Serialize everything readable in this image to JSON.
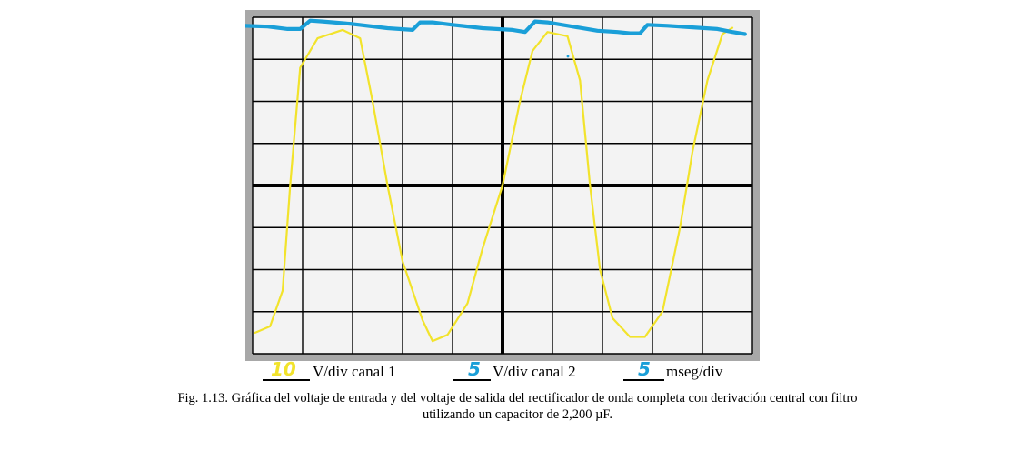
{
  "chart_data": {
    "type": "line",
    "title": "",
    "grid": true,
    "grid_divisions": {
      "x": 10,
      "y": 8
    },
    "xlim_div": [
      0,
      10
    ],
    "ylim_div": [
      -4,
      4
    ],
    "colors": {
      "frame": "#a8a8a8",
      "screen": "#f3f3f3",
      "grid": "#000000",
      "channel1": "#f2e32b",
      "channel2": "#1a9fd8",
      "handwriting": "#1a9fd8",
      "handwriting_ch1": "#f2e32b"
    },
    "series": [
      {
        "name": "",
        "description_channel": "input (canal 1)",
        "color": "#f2e32b",
        "points_div": [
          [
            0.05,
            -3.5
          ],
          [
            0.35,
            -3.35
          ],
          [
            0.6,
            -2.5
          ],
          [
            0.75,
            0
          ],
          [
            0.95,
            2.8
          ],
          [
            1.3,
            3.5
          ],
          [
            1.8,
            3.7
          ],
          [
            2.15,
            3.5
          ],
          [
            2.4,
            2.0
          ],
          [
            2.7,
            0
          ],
          [
            3.0,
            -1.8
          ],
          [
            3.4,
            -3.2
          ],
          [
            3.6,
            -3.7
          ],
          [
            3.9,
            -3.55
          ],
          [
            4.3,
            -2.8
          ],
          [
            4.6,
            -1.5
          ],
          [
            5.0,
            0
          ],
          [
            5.35,
            2.0
          ],
          [
            5.6,
            3.2
          ],
          [
            5.9,
            3.65
          ],
          [
            6.3,
            3.55
          ],
          [
            6.55,
            2.5
          ],
          [
            6.75,
            0
          ],
          [
            6.95,
            -2.0
          ],
          [
            7.2,
            -3.15
          ],
          [
            7.55,
            -3.6
          ],
          [
            7.85,
            -3.6
          ],
          [
            8.2,
            -3.0
          ],
          [
            8.55,
            -1.0
          ],
          [
            8.8,
            0.8
          ],
          [
            9.1,
            2.5
          ],
          [
            9.4,
            3.6
          ],
          [
            9.6,
            3.75
          ]
        ]
      },
      {
        "name": "",
        "description_channel": "output (canal 2)",
        "color": "#1a9fd8",
        "points_div": [
          [
            -0.2,
            3.8
          ],
          [
            0.3,
            3.78
          ],
          [
            0.7,
            3.72
          ],
          [
            0.95,
            3.72
          ],
          [
            1.15,
            3.92
          ],
          [
            1.4,
            3.9
          ],
          [
            2.0,
            3.84
          ],
          [
            2.7,
            3.74
          ],
          [
            3.2,
            3.7
          ],
          [
            3.35,
            3.88
          ],
          [
            3.6,
            3.88
          ],
          [
            4.0,
            3.82
          ],
          [
            4.6,
            3.74
          ],
          [
            5.2,
            3.7
          ],
          [
            5.45,
            3.65
          ],
          [
            5.65,
            3.9
          ],
          [
            5.9,
            3.88
          ],
          [
            6.4,
            3.78
          ],
          [
            6.9,
            3.68
          ],
          [
            7.3,
            3.65
          ],
          [
            7.55,
            3.62
          ],
          [
            7.75,
            3.62
          ],
          [
            7.9,
            3.82
          ],
          [
            8.3,
            3.8
          ],
          [
            8.8,
            3.76
          ],
          [
            9.3,
            3.72
          ],
          [
            9.6,
            3.65
          ],
          [
            9.85,
            3.6
          ]
        ]
      }
    ]
  },
  "settings": {
    "ch1_value": "10",
    "ch1_label": "V/div canal 1",
    "ch2_value": "5",
    "ch2_label": "V/div canal 2",
    "time_value": "5",
    "time_label": "mseg/div"
  },
  "caption": {
    "line1": "Fig. 1.13. Gráfica del voltaje de entrada y del voltaje de salida del rectificador de onda completa con derivación central con filtro",
    "line2": "utilizando un capacitor de 2,200 µF."
  }
}
